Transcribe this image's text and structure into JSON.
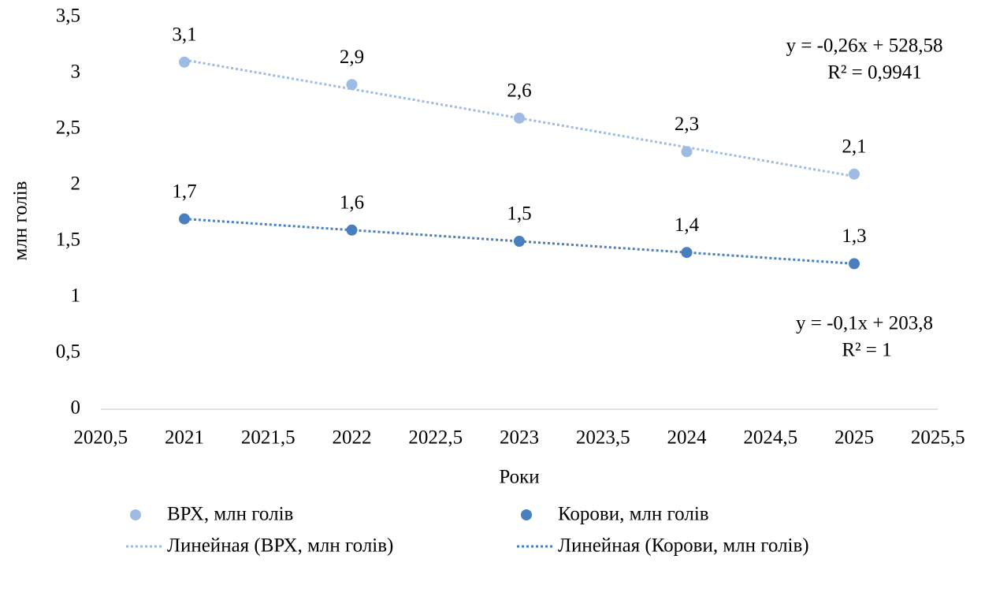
{
  "chart_data": {
    "type": "scatter",
    "y_label": "млн голів",
    "x_label": "Роки",
    "xlim": [
      2020.5,
      2025.5
    ],
    "xticks": [
      {
        "value": 2020.5,
        "label": "2020,5"
      },
      2021,
      {
        "value": 2021.5,
        "label": "2021,5"
      },
      2022,
      {
        "value": 2022.5,
        "label": "2022,5"
      },
      2023,
      {
        "value": 2023.5,
        "label": "2023,5"
      },
      2024,
      {
        "value": 2024.5,
        "label": "2024,5"
      },
      2025,
      {
        "value": 2025.5,
        "label": "2025,5"
      }
    ],
    "ylim": [
      0,
      3.5
    ],
    "yticks": [
      0,
      {
        "value": 0.5,
        "label": "0,5"
      },
      1,
      {
        "value": 1.5,
        "label": "1,5"
      },
      2,
      {
        "value": 2.5,
        "label": "2,5"
      },
      3,
      {
        "value": 3.5,
        "label": "3,5"
      }
    ],
    "grid": false,
    "x": [
      2021,
      2022,
      2023,
      2024,
      2025
    ],
    "series": [
      {
        "name": "ВРХ, млн голів",
        "color": "#9dbbe3",
        "values": [
          3.1,
          2.9,
          2.6,
          2.3,
          2.1
        ],
        "value_labels": [
          "3,1",
          "2,9",
          "2,6",
          "2,3",
          "2,1"
        ],
        "trendline": {
          "name": "Линейная (ВРХ, млн голів)",
          "equation": "y = -0,26x + 528,58",
          "r2": "R² = 0,9941"
        }
      },
      {
        "name": "Корови, млн голів",
        "color": "#4a7fbf",
        "values": [
          1.7,
          1.6,
          1.5,
          1.4,
          1.3
        ],
        "value_labels": [
          "1,7",
          "1,6",
          "1,5",
          "1,4",
          "1,3"
        ],
        "trendline": {
          "name": "Линейная (Корови, млн голів)",
          "equation": "y = -0,1x + 203,8",
          "r2": "R² = 1"
        }
      }
    ]
  }
}
